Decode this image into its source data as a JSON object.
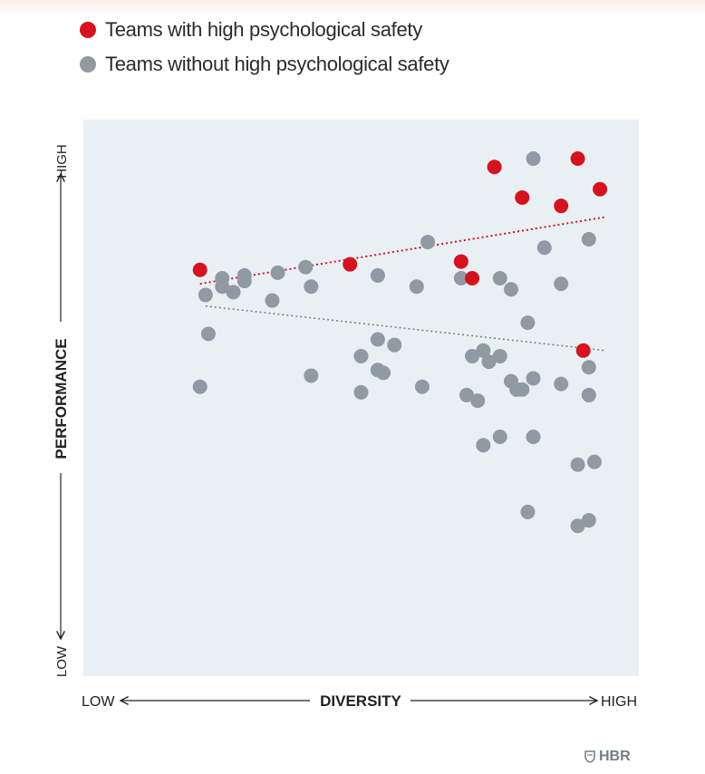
{
  "legend": {
    "high_label": "Teams with high psychological safety",
    "without_label": "Teams without high psychological safety"
  },
  "colors": {
    "high": "#d7121e",
    "without": "#8f9aa3",
    "plot_bg": "#e9f0f4"
  },
  "axes": {
    "y_label": "PERFORMANCE",
    "y_low": "LOW",
    "y_high": "HIGH",
    "x_label": "DIVERSITY",
    "x_low": "LOW",
    "x_high": "HIGH"
  },
  "logo": {
    "text": "HBR"
  },
  "chart_data": {
    "type": "scatter",
    "xlabel": "DIVERSITY",
    "ylabel": "PERFORMANCE",
    "xlim": [
      0,
      100
    ],
    "ylim": [
      0,
      100
    ],
    "legend_position": "top-left",
    "grid": false,
    "series": [
      {
        "name": "Teams with high psychological safety",
        "color": "#d7121e",
        "points": [
          [
            21,
            73
          ],
          [
            48,
            74
          ],
          [
            68,
            74.5
          ],
          [
            70,
            71.5
          ],
          [
            74,
            91.5
          ],
          [
            79,
            86
          ],
          [
            86,
            84.5
          ],
          [
            89,
            93
          ],
          [
            90,
            58.5
          ],
          [
            93,
            87.5
          ]
        ],
        "trend": [
          [
            21,
            70.5
          ],
          [
            94,
            82.5
          ]
        ]
      },
      {
        "name": "Teams without high psychological safety",
        "color": "#8f9aa3",
        "points": [
          [
            22,
            68.5
          ],
          [
            22.5,
            61.5
          ],
          [
            21,
            52
          ],
          [
            25,
            71.5
          ],
          [
            25,
            70
          ],
          [
            27,
            69
          ],
          [
            29,
            72
          ],
          [
            29,
            71
          ],
          [
            35,
            72.5
          ],
          [
            34,
            67.5
          ],
          [
            41,
            70
          ],
          [
            41,
            54
          ],
          [
            40,
            73.5
          ],
          [
            53,
            72
          ],
          [
            50,
            57.5
          ],
          [
            50,
            51
          ],
          [
            53,
            60.5
          ],
          [
            53,
            55
          ],
          [
            54,
            54.5
          ],
          [
            56,
            59.5
          ],
          [
            60,
            70
          ],
          [
            61,
            52
          ],
          [
            62,
            78
          ],
          [
            68,
            71.5
          ],
          [
            69,
            50.5
          ],
          [
            70,
            57.5
          ],
          [
            71,
            49.5
          ],
          [
            72,
            58.5
          ],
          [
            72,
            41.5
          ],
          [
            73,
            56.5
          ],
          [
            75,
            71.5
          ],
          [
            75,
            57.5
          ],
          [
            75,
            43
          ],
          [
            77,
            53
          ],
          [
            77,
            69.5
          ],
          [
            78,
            51.5
          ],
          [
            79,
            51.5
          ],
          [
            80,
            63.5
          ],
          [
            80,
            29.5
          ],
          [
            81,
            53.5
          ],
          [
            81,
            43
          ],
          [
            81,
            93
          ],
          [
            83,
            77
          ],
          [
            86,
            52.5
          ],
          [
            86,
            70.5
          ],
          [
            89,
            38
          ],
          [
            89,
            27
          ],
          [
            91,
            78.5
          ],
          [
            91,
            55.5
          ],
          [
            91,
            50.5
          ],
          [
            91,
            28
          ],
          [
            92,
            38.5
          ]
        ],
        "trend": [
          [
            22,
            66.5
          ],
          [
            94,
            58.5
          ]
        ]
      }
    ]
  }
}
